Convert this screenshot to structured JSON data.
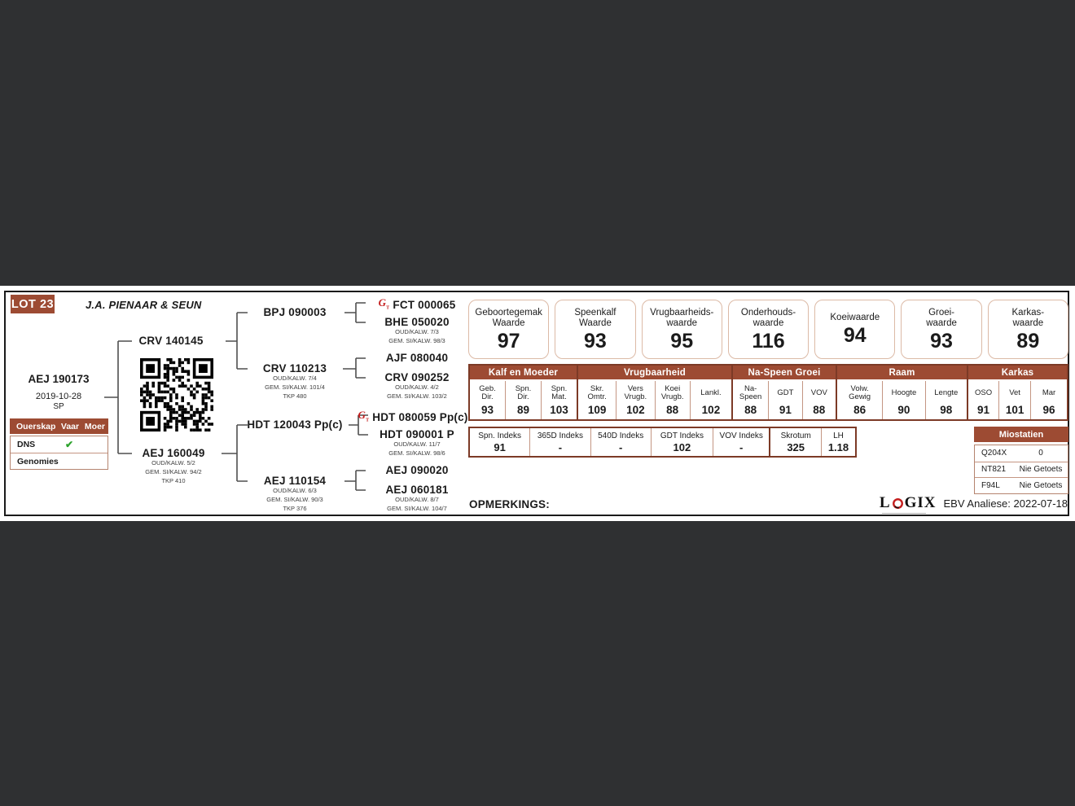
{
  "lot": {
    "number": "LOT 23",
    "breeder": "J.A. PIENAAR & SEUN"
  },
  "animal": {
    "id": "AEJ 190173",
    "birth_date": "2019-10-28",
    "breed": "SP"
  },
  "parentage": {
    "col1": "Ouerskap",
    "col2": "Vaar",
    "col3": "Moer",
    "rows": [
      {
        "label": "DNS",
        "vaar": "✔",
        "moer": ""
      },
      {
        "label": "Genomies",
        "vaar": "",
        "moer": ""
      }
    ]
  },
  "icons": {
    "genomic_letter": "G",
    "genomic_sub": "T"
  },
  "pedigree": {
    "gen1": [
      {
        "name": "CRV 140145"
      },
      {
        "name": "AEJ 160049",
        "sub": [
          "OUD/KALW. 5/2",
          "GEM. SI/KALW. 94/2",
          "TKP 410"
        ]
      }
    ],
    "gen2": [
      {
        "name": "BPJ 090003"
      },
      {
        "name": "CRV 110213",
        "sub": [
          "OUD/KALW. 7/4",
          "GEM. SI/KALW. 101/4",
          "TKP 480"
        ]
      },
      {
        "name": "HDT 120043 Pp(c)"
      },
      {
        "name": "AEJ 110154",
        "sub": [
          "OUD/KALW. 6/3",
          "GEM. SI/KALW. 90/3",
          "TKP 376"
        ]
      }
    ],
    "gen3": [
      {
        "name": "FCT 000065",
        "genomic": true
      },
      {
        "name": "BHE 050020",
        "sub": [
          "OUD/KALW. 7/3",
          "GEM. SI/KALW. 98/3"
        ]
      },
      {
        "name": "AJF 080040"
      },
      {
        "name": "CRV 090252",
        "sub": [
          "OUD/KALW. 4/2",
          "GEM. SI/KALW. 103/2"
        ]
      },
      {
        "name": "HDT 080059 Pp(c)",
        "genomic": true
      },
      {
        "name": "HDT 090001 P",
        "sub": [
          "OUD/KALW. 11/7",
          "GEM. SI/KALW. 98/6"
        ]
      },
      {
        "name": "AEJ 090020"
      },
      {
        "name": "AEJ 060181",
        "sub": [
          "OUD/KALW. 8/7",
          "GEM. SI/KALW. 104/7"
        ]
      }
    ]
  },
  "ebv_boxes": [
    {
      "line1": "Geboortegemak",
      "line2": "Waarde",
      "value": "97"
    },
    {
      "line1": "Speenkalf",
      "line2": "Waarde",
      "value": "93"
    },
    {
      "line1": "Vrugbaarheids-",
      "line2": "waarde",
      "value": "95"
    },
    {
      "line1": "Onderhouds-",
      "line2": "waarde",
      "value": "116"
    },
    {
      "line1": "Koeiwaarde",
      "line2": "",
      "value": "94"
    },
    {
      "line1": "Groei-",
      "line2": "waarde",
      "value": "93"
    },
    {
      "line1": "Karkas-",
      "line2": "waarde",
      "value": "89"
    }
  ],
  "trait_table": {
    "groups": [
      {
        "title": "Kalf en Moeder",
        "cols": [
          {
            "l1": "Geb.",
            "l2": "Dir.",
            "v": "93"
          },
          {
            "l1": "Spn.",
            "l2": "Dir.",
            "v": "89"
          },
          {
            "l1": "Spn.",
            "l2": "Mat.",
            "v": "103"
          }
        ]
      },
      {
        "title": "Vrugbaarheid",
        "cols": [
          {
            "l1": "Skr.",
            "l2": "Omtr.",
            "v": "109"
          },
          {
            "l1": "Vers",
            "l2": "Vrugb.",
            "v": "102"
          },
          {
            "l1": "Koei",
            "l2": "Vrugb.",
            "v": "88"
          },
          {
            "l1": "Lankl.",
            "l2": "",
            "v": "102"
          }
        ]
      },
      {
        "title": "Na-Speen Groei",
        "cols": [
          {
            "l1": "Na-",
            "l2": "Speen",
            "v": "88"
          },
          {
            "l1": "GDT",
            "l2": "",
            "v": "91"
          },
          {
            "l1": "VOV",
            "l2": "",
            "v": "88"
          }
        ]
      },
      {
        "title": "Raam",
        "cols": [
          {
            "l1": "Volw.",
            "l2": "Gewig",
            "v": "86"
          },
          {
            "l1": "Hoogte",
            "l2": "",
            "v": "90"
          },
          {
            "l1": "Lengte",
            "l2": "",
            "v": "98"
          }
        ]
      },
      {
        "title": "Karkas",
        "cols": [
          {
            "l1": "OSO",
            "l2": "",
            "v": "91"
          },
          {
            "l1": "Vet",
            "l2": "",
            "v": "101"
          },
          {
            "l1": "Mar",
            "l2": "",
            "v": "96"
          }
        ]
      }
    ]
  },
  "index_table": [
    {
      "label": "Spn. Indeks",
      "value": "91"
    },
    {
      "label": "365D Indeks",
      "value": "-"
    },
    {
      "label": "540D Indeks",
      "value": "-"
    },
    {
      "label": "GDT Indeks",
      "value": "102"
    },
    {
      "label": "VOV Indeks",
      "value": "-"
    },
    {
      "label": "Skrotum",
      "value": "325"
    },
    {
      "label": "LH",
      "value": "1.18"
    }
  ],
  "miostatien": {
    "title": "Miostatien",
    "rows": [
      {
        "gene": "Q204X",
        "result": "0"
      },
      {
        "gene": "NT821",
        "result": "Nie Getoets"
      },
      {
        "gene": "F94L",
        "result": "Nie Getoets"
      }
    ]
  },
  "footer": {
    "opmerkings": "OPMERKINGS:",
    "logo_prefix": "L",
    "logo_suffix": "GIX",
    "analysis": "EBV Analiese: 2022-07-18"
  },
  "colors": {
    "accent_brown": "#9d4b33",
    "border_dark": "#7c3a26",
    "border_light": "#c49683",
    "genomic_red": "#c41e1e",
    "check_green": "#2da32d",
    "page_background": "#2f3032"
  }
}
